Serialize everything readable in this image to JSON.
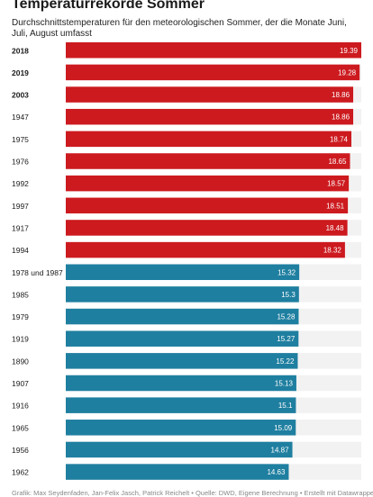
{
  "header": {
    "title": "Temperaturrekorde Sommer",
    "subtitle": "Durchschnittstemperaturen für den meteorologischen Sommer, der die Monate Juni, Juli, August umfasst"
  },
  "footer": {
    "credit": "Grafik: Max Seydenfaden, Jan-Felix Jasch, Patrick Reichelt • Quelle: DWD, Eigene Berechnung • Erstellt mit Datawrapper"
  },
  "chart_data": {
    "type": "bar",
    "orientation": "horizontal",
    "categories": [
      "2018",
      "2019",
      "2003",
      "1947",
      "1975",
      "1976",
      "1992",
      "1997",
      "1917",
      "1994",
      "1978 und 1987",
      "1985",
      "1979",
      "1919",
      "1890",
      "1907",
      "1916",
      "1965",
      "1956",
      "1962"
    ],
    "bold_categories": [
      "2018",
      "2019",
      "2003"
    ],
    "values": [
      19.39,
      19.28,
      18.86,
      18.86,
      18.74,
      18.65,
      18.57,
      18.51,
      18.48,
      18.32,
      15.32,
      15.3,
      15.28,
      15.27,
      15.22,
      15.13,
      15.1,
      15.09,
      14.87,
      14.63
    ],
    "value_labels": [
      "19.39",
      "19.28",
      "18.86",
      "18.86",
      "18.74",
      "18.65",
      "18.57",
      "18.51",
      "18.48",
      "18.32",
      "15.32",
      "15.3",
      "15.28",
      "15.27",
      "15.22",
      "15.13",
      "15.1",
      "15.09",
      "14.87",
      "14.63"
    ],
    "groups": [
      "hot",
      "hot",
      "hot",
      "hot",
      "hot",
      "hot",
      "hot",
      "hot",
      "hot",
      "hot",
      "cold",
      "cold",
      "cold",
      "cold",
      "cold",
      "cold",
      "cold",
      "cold",
      "cold",
      "cold"
    ],
    "colors": {
      "hot": "#cc1a1f",
      "cold": "#1f7fa0",
      "track": "#f2f2f2"
    },
    "xlim": [
      0,
      19.39
    ],
    "grid": false,
    "legend": "none"
  }
}
